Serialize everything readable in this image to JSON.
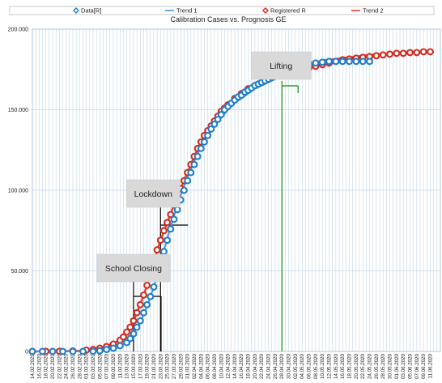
{
  "colors": {
    "data_marker": "#1f7fc9",
    "trend1": "#3a9be0",
    "registered_marker": "#d32b1e",
    "trend2": "#e04030",
    "grid": "#aec8e3",
    "annotation_box": "#d9d9d9",
    "lifting_line": "#2ca02c"
  },
  "chart_data": {
    "type": "line",
    "title": "Calibration Cases vs. Prognosis GE",
    "ylim": [
      0,
      200000
    ],
    "y_tick_labels": [
      "0",
      "50.000",
      "100.000",
      "150.000",
      "200.000"
    ],
    "y_tick_values": [
      0,
      50000,
      100000,
      150000,
      200000
    ],
    "grid": true,
    "legend_position": "top",
    "legend": [
      {
        "label": "Data[R]",
        "kind": "marker",
        "color_key": "data_marker"
      },
      {
        "label": "Trend 1",
        "kind": "line",
        "color_key": "trend1"
      },
      {
        "label": "Registered R",
        "kind": "marker",
        "color_key": "registered_marker"
      },
      {
        "label": "Trend 2",
        "kind": "line",
        "color_key": "trend2"
      }
    ],
    "x_tick_labels": [
      "14.02.2020",
      "16.02.2020",
      "18.02.2020",
      "20.02.2020",
      "22.02.2020",
      "24.02.2020",
      "26.02.2020",
      "28.02.2020",
      "01.03.2020",
      "03.03.2020",
      "05.03.2020",
      "07.03.2020",
      "09.03.2020",
      "11.03.2020",
      "13.03.2020",
      "15.03.2020",
      "17.03.2020",
      "19.03.2020",
      "21.03.2020",
      "23.03.2020",
      "25.03.2020",
      "27.03.2020",
      "29.03.2020",
      "31.03.2020",
      "02.04.2020",
      "04.04.2020",
      "06.04.2020",
      "08.04.2020",
      "10.04.2020",
      "12.04.2020",
      "14.04.2020",
      "16.04.2020",
      "18.04.2020",
      "20.04.2020",
      "22.04.2020",
      "24.04.2020",
      "26.04.2020",
      "28.04.2020",
      "30.04.2020",
      "02.05.2020",
      "04.05.2020",
      "06.05.2020",
      "08.05.2020",
      "10.05.2020",
      "12.05.2020",
      "14.05.2020",
      "16.05.2020",
      "18.05.2020",
      "20.05.2020",
      "22.05.2020",
      "24.05.2020",
      "26.05.2020",
      "28.05.2020",
      "30.05.2020",
      "01.06.2020",
      "03.06.2020",
      "05.06.2020",
      "07.06.2020",
      "09.06.2020",
      "11.06.2020"
    ],
    "series": [
      {
        "name": "Data[R]",
        "days_from": "14.02.2020",
        "x": [
          0,
          3,
          6,
          9,
          12,
          15,
          18,
          20,
          22,
          24,
          26,
          28,
          29,
          30,
          31,
          32,
          33,
          34,
          35,
          36,
          37,
          38,
          39,
          40,
          41,
          42,
          43,
          44,
          45,
          46,
          47,
          48,
          49,
          50,
          51,
          52,
          53,
          54,
          55,
          56,
          57,
          58,
          59,
          60,
          61,
          62,
          63,
          64,
          65,
          66,
          67,
          68,
          69,
          70,
          71,
          72,
          73,
          74,
          75,
          76,
          77,
          78,
          79,
          80,
          81,
          82,
          84,
          86,
          88,
          90,
          92,
          94,
          96,
          98,
          100
        ],
        "values": [
          0,
          0,
          0,
          0,
          0,
          0,
          100,
          400,
          1200,
          2000,
          3500,
          5500,
          8000,
          11000,
          15000,
          19000,
          24000,
          29000,
          34000,
          40000,
          47000,
          55000,
          62000,
          69000,
          76000,
          82000,
          88000,
          94000,
          100000,
          106000,
          111000,
          116000,
          121000,
          126000,
          130000,
          134000,
          138000,
          141000,
          144000,
          147000,
          150000,
          152000,
          154000,
          156000,
          158000,
          159000,
          161000,
          162000,
          163500,
          165000,
          166000,
          167000,
          168000,
          169000,
          170000,
          171000,
          172000,
          173000,
          174000,
          174500,
          175000,
          176000,
          177000,
          177500,
          178000,
          178500,
          179000,
          179500,
          180000,
          180000,
          180000,
          180000,
          180000,
          180000,
          180000
        ]
      },
      {
        "name": "Registered R",
        "days_from": "14.02.2020",
        "x": [
          0,
          4,
          8,
          12,
          16,
          18,
          20,
          22,
          24,
          26,
          27,
          28,
          29,
          30,
          31,
          32,
          33,
          34,
          35,
          36,
          37,
          38,
          39,
          40,
          41,
          42,
          43,
          44,
          45,
          46,
          47,
          48,
          49,
          50,
          51,
          52,
          53,
          54,
          55,
          56,
          57,
          58,
          60,
          62,
          64,
          66,
          68,
          70,
          72,
          74,
          76,
          78,
          80,
          82,
          84,
          86,
          88,
          90,
          92,
          94,
          96,
          98,
          100,
          102,
          104,
          106,
          108,
          110,
          112,
          114,
          116,
          118
        ],
        "values": [
          0,
          0,
          100,
          300,
          800,
          1200,
          2000,
          3000,
          4500,
          7000,
          9000,
          12000,
          15000,
          19000,
          24000,
          29000,
          35000,
          41000,
          48000,
          56000,
          63000,
          69000,
          75000,
          80000,
          85000,
          91000,
          96000,
          101000,
          106000,
          111000,
          116000,
          121000,
          126000,
          130000,
          134000,
          137000,
          140000,
          143000,
          146000,
          149000,
          151000,
          153000,
          157000,
          160000,
          163000,
          165000,
          167000,
          169000,
          171000,
          172000,
          173000,
          174000,
          175000,
          176000,
          177000,
          178000,
          179000,
          180000,
          181000,
          181500,
          182000,
          182500,
          183000,
          183500,
          184000,
          184500,
          185000,
          185000,
          185500,
          185500,
          186000,
          186000
        ]
      },
      {
        "name": "Trend 1",
        "days_from": "14.02.2020",
        "x": [
          0,
          10,
          20,
          25,
          28,
          30,
          32,
          34,
          36,
          38,
          40,
          42,
          44,
          46,
          48,
          50,
          52,
          54,
          56,
          58,
          60,
          62,
          64,
          66,
          68,
          70,
          72,
          74,
          76,
          78,
          80,
          82,
          84,
          86,
          88,
          90,
          92,
          94,
          96,
          98,
          100
        ],
        "values": [
          0,
          0,
          0,
          2000,
          6000,
          11000,
          18000,
          28000,
          40000,
          55000,
          70000,
          84000,
          97000,
          108000,
          118000,
          127000,
          134000,
          140000,
          145000,
          150000,
          154000,
          157000,
          160000,
          163000,
          165000,
          167000,
          169000,
          171000,
          172500,
          174000,
          175000,
          176000,
          177000,
          178000,
          178500,
          179000,
          179500,
          180000,
          180000,
          180000,
          180000
        ]
      },
      {
        "name": "Trend 2",
        "days_from": "14.02.2020",
        "x": [
          0,
          8,
          14,
          18,
          22,
          26,
          28,
          30,
          32,
          34,
          36,
          38,
          40,
          42,
          44,
          46,
          48,
          50,
          52,
          54,
          56,
          58,
          60,
          62,
          64,
          66,
          68,
          70,
          72,
          74,
          76,
          78,
          80,
          82,
          84,
          86,
          88,
          90,
          92,
          94,
          96,
          98,
          100,
          104,
          108,
          112,
          116,
          118
        ],
        "values": [
          0,
          100,
          400,
          1200,
          3200,
          7000,
          12000,
          19000,
          29000,
          41000,
          56000,
          69000,
          80000,
          91000,
          101000,
          111000,
          121000,
          130000,
          137000,
          143000,
          149000,
          153000,
          157000,
          160000,
          163000,
          165500,
          168000,
          170000,
          172000,
          173500,
          175000,
          176500,
          177500,
          178500,
          179500,
          180500,
          181000,
          181500,
          182000,
          182500,
          183000,
          183500,
          184000,
          184500,
          185000,
          185500,
          186000,
          186000
        ]
      }
    ],
    "annotations": [
      {
        "label": "School Closing",
        "date": "15.03.2020"
      },
      {
        "label": "Lockdown",
        "date": "23.03.2020"
      },
      {
        "label": "Lifting",
        "date": "28.04.2020"
      }
    ]
  }
}
